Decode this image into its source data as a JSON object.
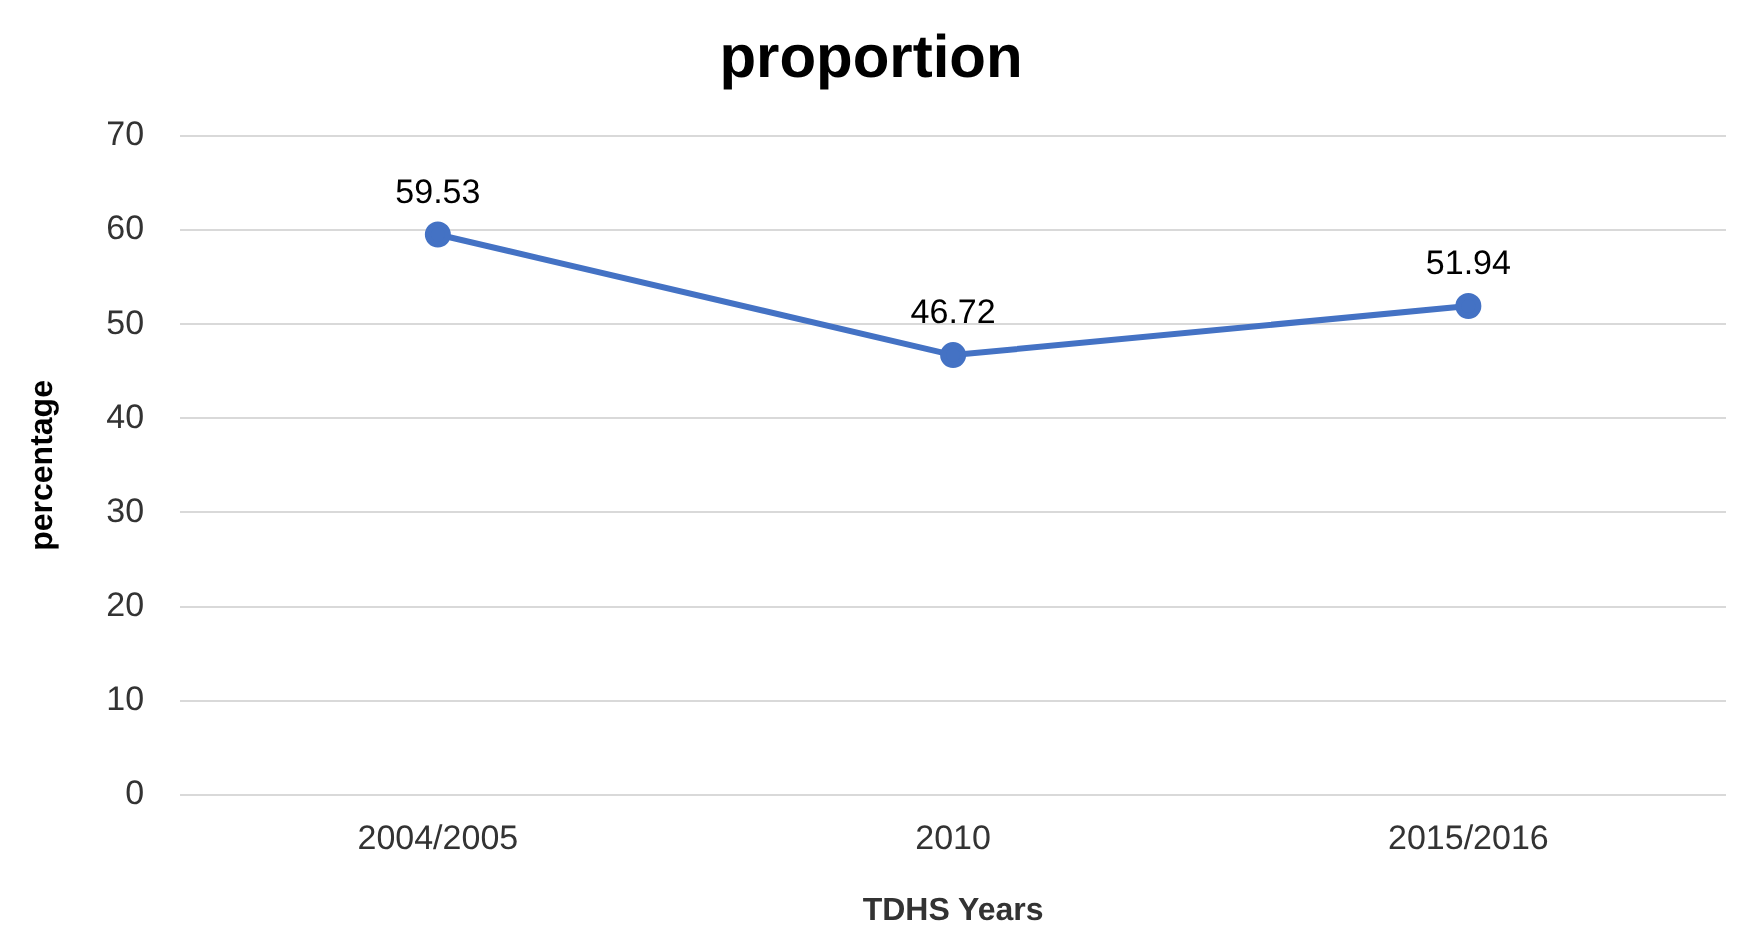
{
  "chart_data": {
    "type": "line",
    "title": "proportion",
    "xlabel": "TDHS Years",
    "ylabel": "percentage",
    "categories": [
      "2004/2005",
      "2010",
      "2015/2016"
    ],
    "series": [
      {
        "color": "#4472c4",
        "values": [
          59.53,
          46.72,
          51.94
        ]
      }
    ],
    "ylim": [
      0,
      70
    ],
    "yticks": [
      0,
      10,
      20,
      30,
      40,
      50,
      60,
      70
    ],
    "grid": "y",
    "legend": false,
    "marker": "circle",
    "line_style": "solid",
    "data_labels": true
  }
}
